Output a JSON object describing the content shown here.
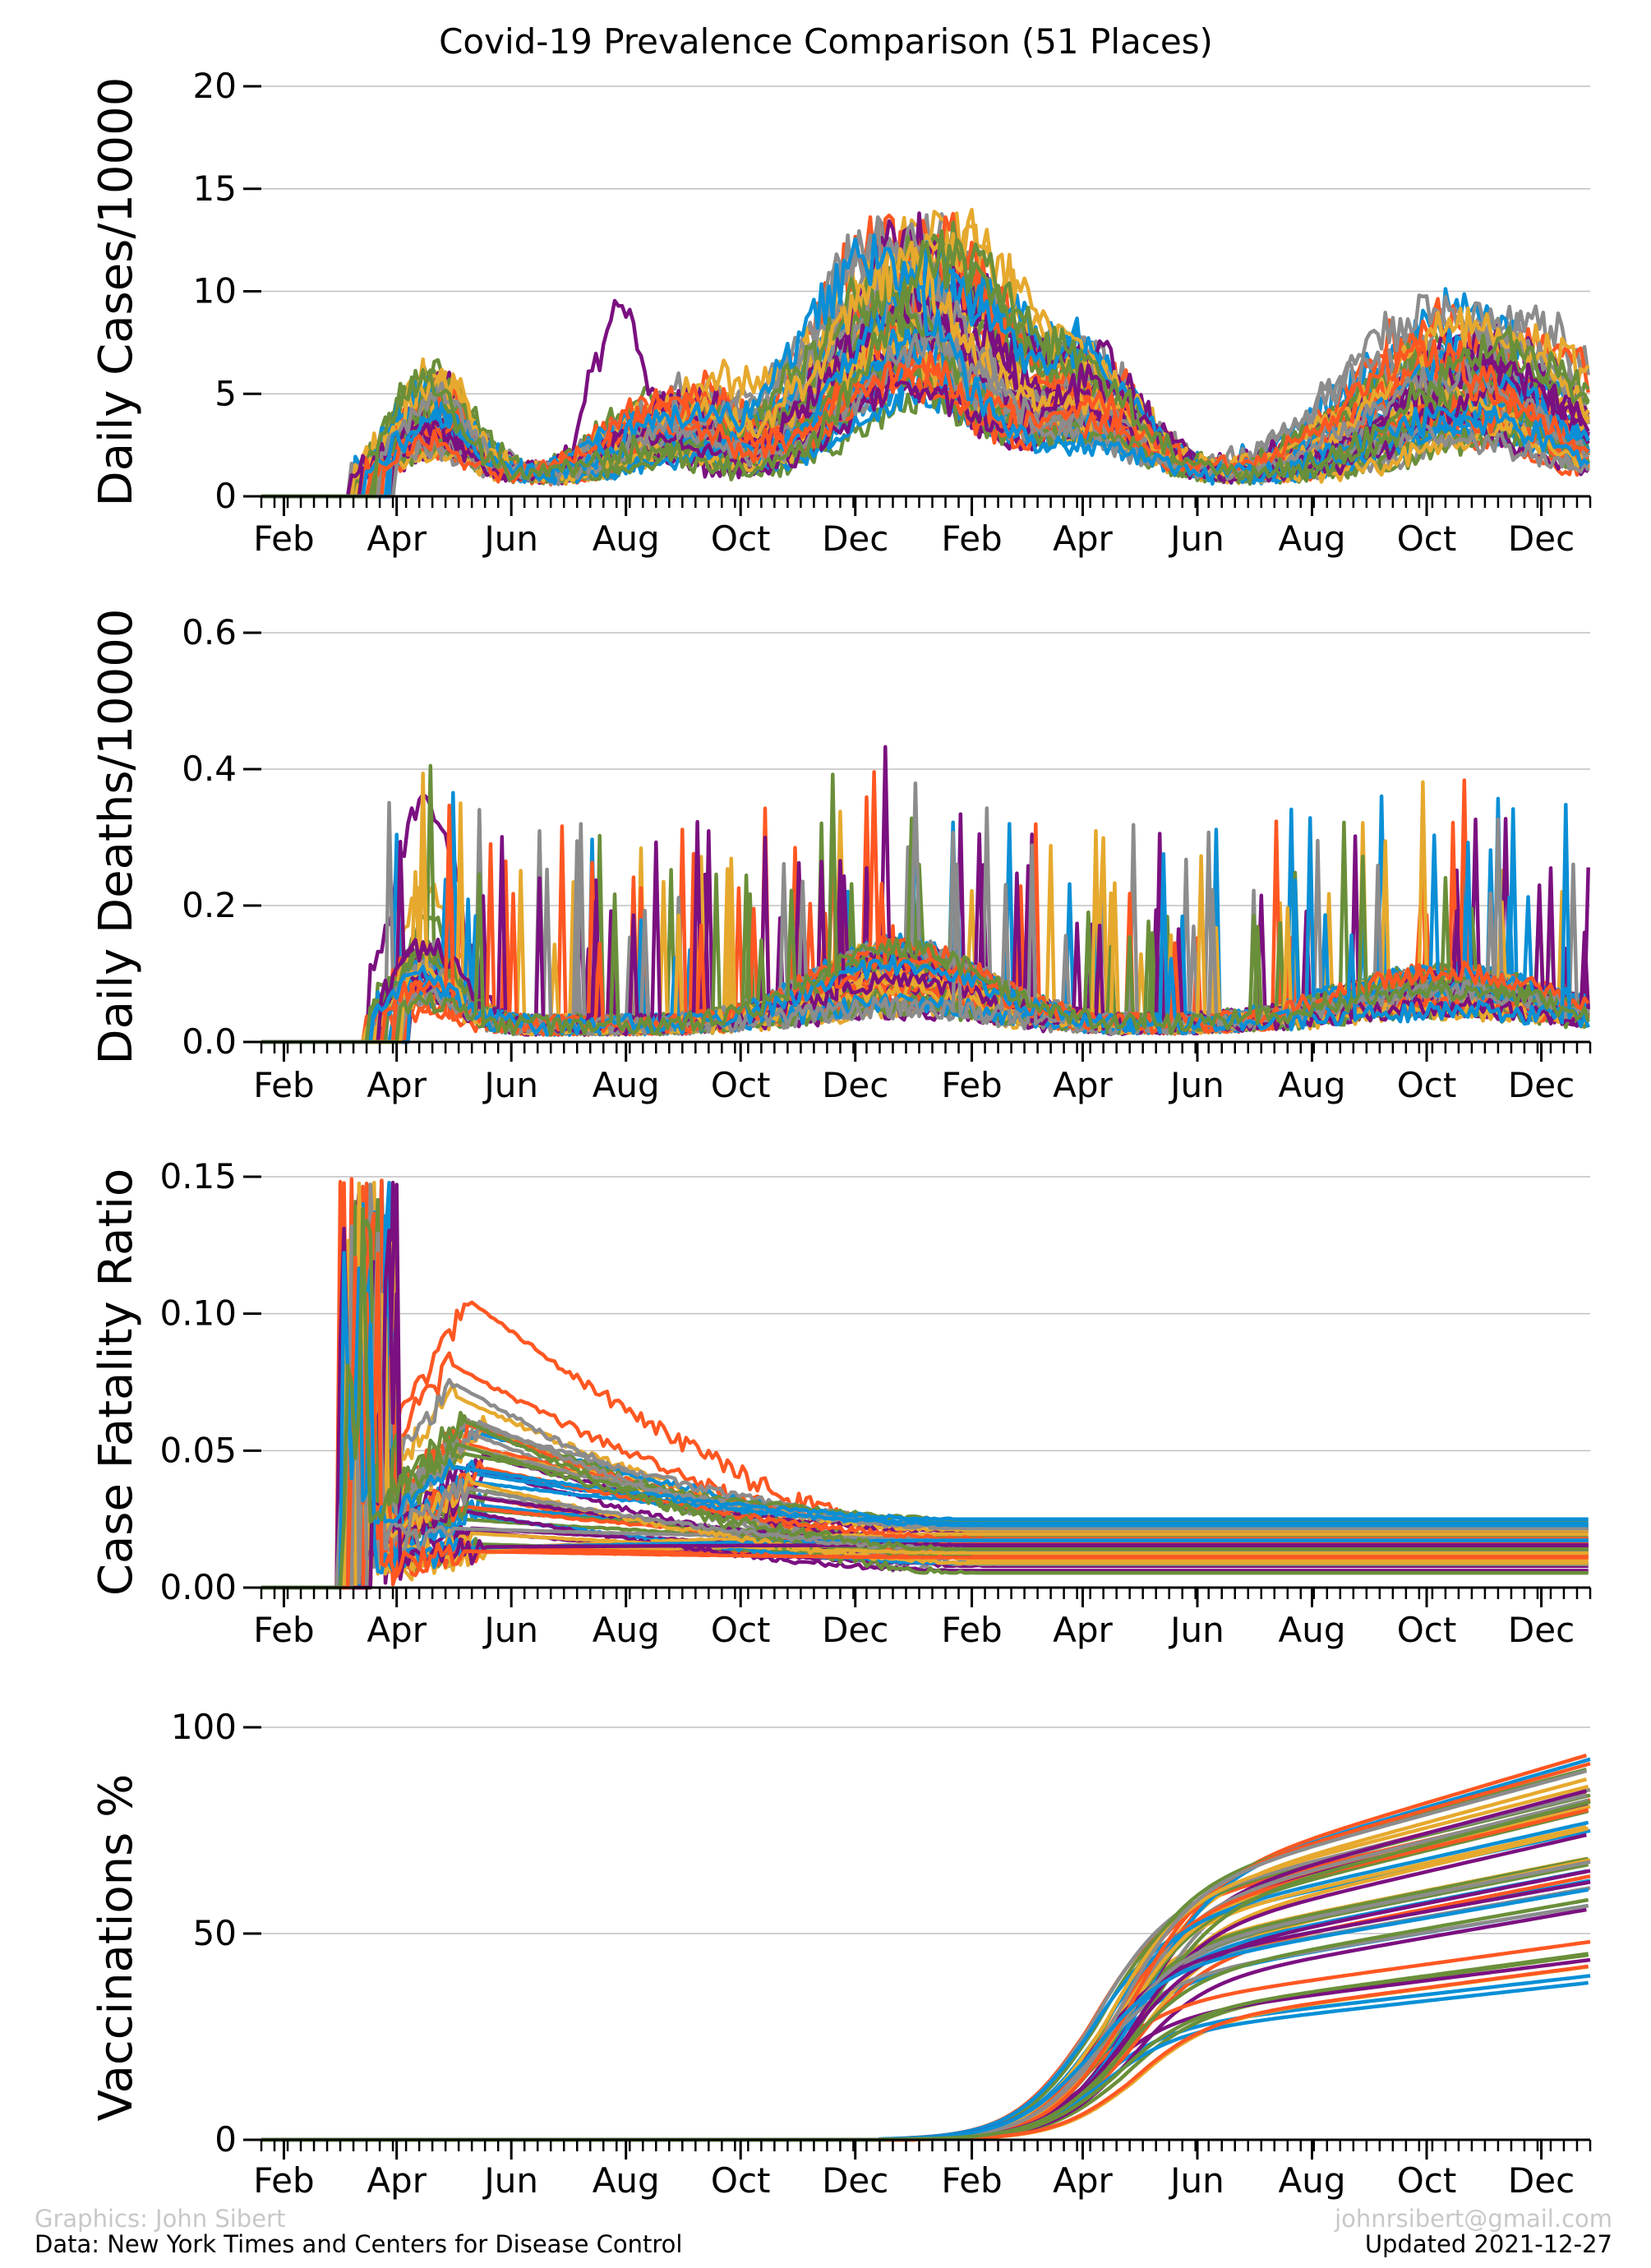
{
  "title": "Covid-19 Prevalence Comparison (51 Places)",
  "footer": {
    "credit": "Graphics: John Sibert",
    "source": "Data: New York Times and Centers for Disease Control",
    "email": "johnrsibert@gmail.com",
    "updated": "Updated 2021-12-27"
  },
  "colors": [
    "#ff5722",
    "#0a8fd6",
    "#6a8f3a",
    "#e6a92e",
    "#7b1080",
    "#8c8c8c"
  ],
  "chart_data": [
    {
      "type": "line",
      "ylabel": "Daily Cases/10000",
      "ylim": [
        0,
        20
      ],
      "yticks": [
        "0",
        "5",
        "10",
        "15",
        "20"
      ],
      "xlim": [
        "2020-01-20",
        "2021-12-27"
      ],
      "xticks": [
        "Feb",
        "Apr",
        "Jun",
        "Aug",
        "Oct",
        "Dec",
        "Feb",
        "Apr",
        "Jun",
        "Aug",
        "Oct",
        "Dec"
      ],
      "grid": "horizontal",
      "series_count": 51
    },
    {
      "type": "line",
      "ylabel": "Daily Deaths/10000",
      "ylim": [
        0,
        0.6
      ],
      "yticks": [
        "0.0",
        "0.2",
        "0.4",
        "0.6"
      ],
      "xlim": [
        "2020-01-20",
        "2021-12-27"
      ],
      "xticks": [
        "Feb",
        "Apr",
        "Jun",
        "Aug",
        "Oct",
        "Dec",
        "Feb",
        "Apr",
        "Jun",
        "Aug",
        "Oct",
        "Dec"
      ],
      "grid": "horizontal",
      "series_count": 51
    },
    {
      "type": "line",
      "ylabel": "Case Fatality Ratio",
      "ylim": [
        0,
        0.15
      ],
      "yticks": [
        "0.00",
        "0.05",
        "0.10",
        "0.15"
      ],
      "xlim": [
        "2020-01-20",
        "2021-12-27"
      ],
      "xticks": [
        "Feb",
        "Apr",
        "Jun",
        "Aug",
        "Oct",
        "Dec",
        "Feb",
        "Apr",
        "Jun",
        "Aug",
        "Oct",
        "Dec"
      ],
      "grid": "horizontal",
      "series_count": 51
    },
    {
      "type": "line",
      "ylabel": "Vaccinations %",
      "ylim": [
        0,
        100
      ],
      "yticks": [
        "0",
        "50",
        "100"
      ],
      "xlim": [
        "2020-01-20",
        "2021-12-27"
      ],
      "xticks": [
        "Feb",
        "Apr",
        "Jun",
        "Aug",
        "Oct",
        "Dec",
        "Feb",
        "Apr",
        "Jun",
        "Aug",
        "Oct",
        "Dec"
      ],
      "grid": "horizontal",
      "series_count": 51
    }
  ]
}
